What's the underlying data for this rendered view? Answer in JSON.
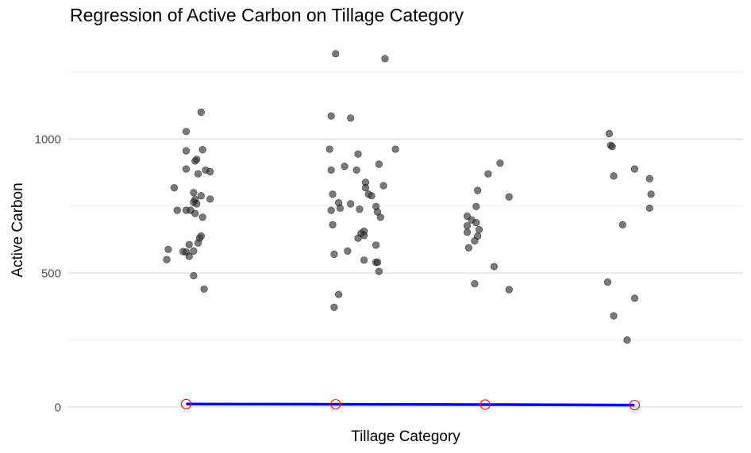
{
  "chart_data": {
    "type": "scatter",
    "title": "Regression of Active Carbon on Tillage Category",
    "xlabel": "Tillage Category",
    "ylabel": "Active Carbon",
    "ylim": [
      -5,
      1330
    ],
    "y_ticks": [
      0,
      500,
      1000
    ],
    "grid": "horizontal",
    "categories": [
      "1",
      "2",
      "3",
      "4"
    ],
    "x_tick_labels_shown": false,
    "series": [
      {
        "kind": "points",
        "color": "#333333",
        "points": [
          [
            1.0,
            1028
          ],
          [
            1.1,
            1100
          ],
          [
            1.0,
            956
          ],
          [
            1.07,
            924
          ],
          [
            1.06,
            918
          ],
          [
            1.11,
            960
          ],
          [
            1.0,
            888
          ],
          [
            1.08,
            870
          ],
          [
            1.13,
            884
          ],
          [
            1.16,
            878
          ],
          [
            0.92,
            818
          ],
          [
            1.05,
            800
          ],
          [
            1.1,
            788
          ],
          [
            1.06,
            774
          ],
          [
            1.16,
            776
          ],
          [
            1.05,
            764
          ],
          [
            1.07,
            758
          ],
          [
            0.94,
            734
          ],
          [
            1.0,
            734
          ],
          [
            1.03,
            734
          ],
          [
            1.06,
            722
          ],
          [
            1.11,
            708
          ],
          [
            1.1,
            638
          ],
          [
            1.09,
            630
          ],
          [
            1.08,
            612
          ],
          [
            1.02,
            606
          ],
          [
            0.88,
            588
          ],
          [
            0.98,
            580
          ],
          [
            1.0,
            578
          ],
          [
            1.05,
            582
          ],
          [
            1.02,
            562
          ],
          [
            0.87,
            550
          ],
          [
            1.05,
            490
          ],
          [
            1.12,
            440
          ],
          [
            2.0,
            1318
          ],
          [
            2.33,
            1300
          ],
          [
            1.97,
            1086
          ],
          [
            2.1,
            1078
          ],
          [
            1.96,
            962
          ],
          [
            2.15,
            944
          ],
          [
            2.4,
            962
          ],
          [
            2.29,
            906
          ],
          [
            1.97,
            884
          ],
          [
            2.06,
            898
          ],
          [
            2.14,
            884
          ],
          [
            2.2,
            838
          ],
          [
            2.32,
            826
          ],
          [
            2.2,
            818
          ],
          [
            2.22,
            794
          ],
          [
            2.24,
            788
          ],
          [
            1.98,
            794
          ],
          [
            2.02,
            762
          ],
          [
            2.1,
            758
          ],
          [
            2.03,
            742
          ],
          [
            2.16,
            738
          ],
          [
            1.97,
            734
          ],
          [
            2.27,
            748
          ],
          [
            2.28,
            728
          ],
          [
            2.3,
            708
          ],
          [
            2.19,
            656
          ],
          [
            2.17,
            648
          ],
          [
            2.19,
            640
          ],
          [
            2.15,
            630
          ],
          [
            1.98,
            680
          ],
          [
            2.27,
            604
          ],
          [
            2.08,
            582
          ],
          [
            1.99,
            570
          ],
          [
            2.19,
            548
          ],
          [
            2.27,
            540
          ],
          [
            2.28,
            540
          ],
          [
            2.29,
            506
          ],
          [
            2.02,
            420
          ],
          [
            1.99,
            372
          ],
          [
            3.1,
            910
          ],
          [
            3.02,
            870
          ],
          [
            3.16,
            784
          ],
          [
            2.95,
            808
          ],
          [
            2.94,
            748
          ],
          [
            2.88,
            712
          ],
          [
            2.88,
            676
          ],
          [
            2.91,
            698
          ],
          [
            2.94,
            688
          ],
          [
            2.96,
            662
          ],
          [
            2.88,
            652
          ],
          [
            2.95,
            638
          ],
          [
            2.93,
            620
          ],
          [
            2.89,
            594
          ],
          [
            3.06,
            524
          ],
          [
            2.93,
            460
          ],
          [
            3.16,
            438
          ],
          [
            3.83,
            1020
          ],
          [
            3.84,
            976
          ],
          [
            3.85,
            972
          ],
          [
            3.86,
            862
          ],
          [
            4.0,
            888
          ],
          [
            4.1,
            852
          ],
          [
            4.11,
            794
          ],
          [
            4.1,
            742
          ],
          [
            3.92,
            680
          ],
          [
            3.82,
            466
          ],
          [
            4.0,
            406
          ],
          [
            3.86,
            340
          ],
          [
            3.95,
            250
          ]
        ]
      },
      {
        "kind": "regression-line",
        "color": "#0000ff",
        "marker_color": "#ff0000",
        "x": [
          1,
          2,
          3,
          4
        ],
        "y": [
          11,
          10,
          9,
          7
        ]
      }
    ]
  }
}
